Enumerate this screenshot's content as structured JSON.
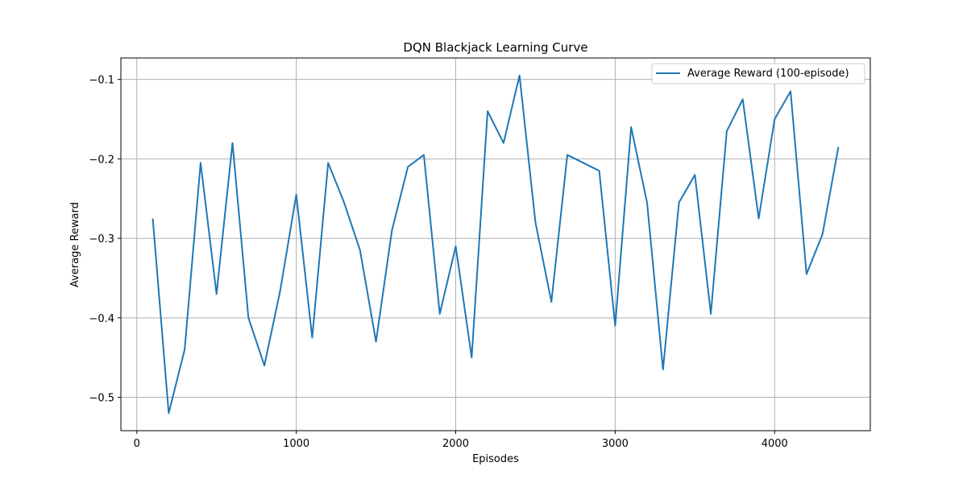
{
  "chart_data": {
    "type": "line",
    "title": "DQN Blackjack Learning Curve",
    "xlabel": "Episodes",
    "ylabel": "Average Reward",
    "xlim": [
      -100,
      4600
    ],
    "ylim": [
      -0.542,
      -0.073
    ],
    "xticks": [
      0,
      1000,
      2000,
      3000,
      4000
    ],
    "yticks": [
      -0.5,
      -0.4,
      -0.3,
      -0.2,
      -0.1
    ],
    "xtick_labels": [
      "0",
      "1000",
      "2000",
      "3000",
      "4000"
    ],
    "ytick_labels": [
      "−0.5",
      "−0.4",
      "−0.3",
      "−0.2",
      "−0.1"
    ],
    "grid": true,
    "legend_position": "top-right",
    "series": [
      {
        "name": "Average Reward (100-episode)",
        "color": "#1f77b4",
        "x": [
          100,
          200,
          300,
          400,
          500,
          600,
          700,
          800,
          900,
          1000,
          1100,
          1200,
          1300,
          1400,
          1500,
          1600,
          1700,
          1800,
          1900,
          2000,
          2100,
          2200,
          2300,
          2400,
          2500,
          2600,
          2700,
          2800,
          2900,
          3000,
          3100,
          3200,
          3300,
          3400,
          3500,
          3600,
          3700,
          3800,
          3900,
          4000,
          4100,
          4200,
          4300,
          4400
        ],
        "y": [
          -0.275,
          -0.52,
          -0.44,
          -0.205,
          -0.37,
          -0.18,
          -0.4,
          -0.46,
          -0.365,
          -0.245,
          -0.425,
          -0.205,
          -0.255,
          -0.315,
          -0.43,
          -0.29,
          -0.21,
          -0.195,
          -0.395,
          -0.31,
          -0.45,
          -0.14,
          -0.18,
          -0.095,
          -0.28,
          -0.38,
          -0.195,
          -0.205,
          -0.215,
          -0.41,
          -0.16,
          -0.255,
          -0.465,
          -0.255,
          -0.22,
          -0.395,
          -0.165,
          -0.125,
          -0.275,
          -0.15,
          -0.115,
          -0.345,
          -0.295,
          -0.185
        ]
      }
    ]
  }
}
